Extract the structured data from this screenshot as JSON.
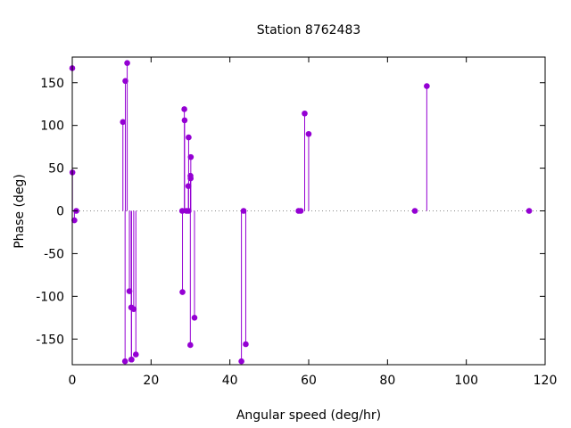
{
  "chart_data": {
    "type": "scatter",
    "style": "impulses-with-points",
    "title": "Station 8762483",
    "xlabel": "Angular speed (deg/hr)",
    "ylabel": "Phase (deg)",
    "xlim": [
      0,
      120
    ],
    "ylim": [
      -180,
      180
    ],
    "xticks": [
      0,
      20,
      40,
      60,
      80,
      100,
      120
    ],
    "yticks": [
      -150,
      -100,
      -50,
      0,
      50,
      100,
      150
    ],
    "zero_line": "dotted",
    "grid": false,
    "legend": "none",
    "color": "#9400d3",
    "series": [
      {
        "points": [
          [
            0.0,
            167
          ],
          [
            0.04,
            45
          ],
          [
            0.54,
            -11
          ],
          [
            1.02,
            0
          ],
          [
            12.85,
            104
          ],
          [
            13.4,
            -176
          ],
          [
            13.47,
            152
          ],
          [
            13.94,
            173
          ],
          [
            14.5,
            -94
          ],
          [
            14.96,
            -113
          ],
          [
            15.0,
            -174
          ],
          [
            15.04,
            -174
          ],
          [
            15.59,
            -115
          ],
          [
            16.14,
            -168
          ],
          [
            27.9,
            0
          ],
          [
            27.97,
            -95
          ],
          [
            28.44,
            119
          ],
          [
            28.51,
            106
          ],
          [
            28.98,
            0
          ],
          [
            29.46,
            29
          ],
          [
            29.53,
            0
          ],
          [
            29.53,
            86
          ],
          [
            29.96,
            -157
          ],
          [
            30.0,
            41
          ],
          [
            30.04,
            38
          ],
          [
            30.08,
            63
          ],
          [
            31.02,
            -125
          ],
          [
            42.93,
            -176
          ],
          [
            43.48,
            0
          ],
          [
            44.03,
            -156
          ],
          [
            57.42,
            0
          ],
          [
            57.97,
            0
          ],
          [
            58.98,
            114
          ],
          [
            59.99,
            90
          ],
          [
            86.95,
            0
          ],
          [
            89.97,
            146
          ],
          [
            115.94,
            0
          ]
        ]
      }
    ]
  }
}
